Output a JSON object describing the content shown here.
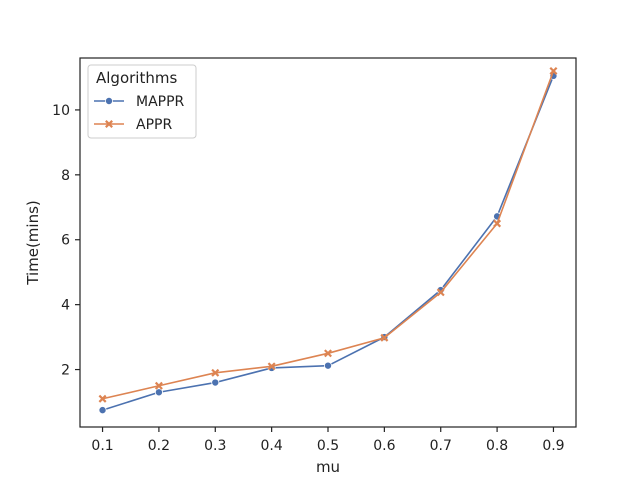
{
  "chart_data": {
    "type": "line",
    "xlabel": "mu",
    "ylabel": "Time(mins)",
    "x": [
      0.1,
      0.2,
      0.3,
      0.4,
      0.5,
      0.6,
      0.7,
      0.8,
      0.9
    ],
    "x_tick_labels": [
      "0.1",
      "0.2",
      "0.3",
      "0.4",
      "0.5",
      "0.6",
      "0.7",
      "0.8",
      "0.9"
    ],
    "y_ticks": [
      2,
      4,
      6,
      8,
      10
    ],
    "y_tick_labels": [
      "2",
      "4",
      "6",
      "8",
      "10"
    ],
    "xlim": [
      0.06,
      0.94
    ],
    "ylim": [
      0.23,
      11.6
    ],
    "grid": false,
    "legend": {
      "title": "Algorithms",
      "placement": "top-left"
    },
    "series": [
      {
        "name": "MAPPR",
        "color": "#4c72b0",
        "marker": "circle",
        "values": [
          0.75,
          1.3,
          1.6,
          2.05,
          2.12,
          3.0,
          4.45,
          6.72,
          11.05
        ]
      },
      {
        "name": "APPR",
        "color": "#dd8452",
        "marker": "x",
        "values": [
          1.1,
          1.5,
          1.9,
          2.1,
          2.5,
          2.98,
          4.38,
          6.5,
          11.2
        ]
      }
    ]
  }
}
